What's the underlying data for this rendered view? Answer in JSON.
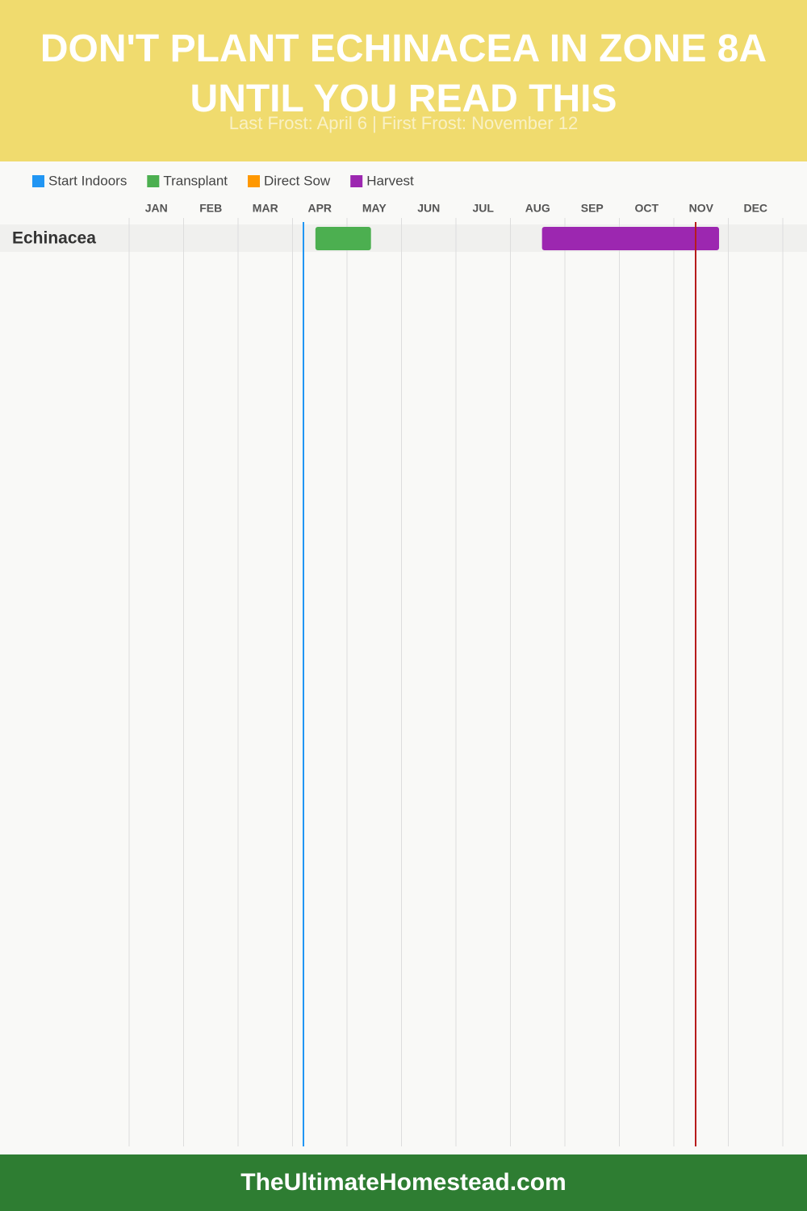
{
  "chart_data": {
    "type": "gantt",
    "title": "DON'T PLANT ECHINACEA IN ZONE 8A UNTIL YOU READ THIS",
    "subtitle": "Last Frost: April 6 | First Frost: November 12",
    "footer": "TheUltimateHomestead.com",
    "categories": [
      "Echinacea"
    ],
    "xlim": [
      0,
      12
    ],
    "xticks": [
      {
        "value": 0.5,
        "label": "JAN"
      },
      {
        "value": 1.5,
        "label": "FEB"
      },
      {
        "value": 2.5,
        "label": "MAR"
      },
      {
        "value": 3.5,
        "label": "APR"
      },
      {
        "value": 4.5,
        "label": "MAY"
      },
      {
        "value": 5.5,
        "label": "JUN"
      },
      {
        "value": 6.5,
        "label": "JUL"
      },
      {
        "value": 7.5,
        "label": "AUG"
      },
      {
        "value": 8.5,
        "label": "SEP"
      },
      {
        "value": 9.5,
        "label": "OCT"
      },
      {
        "value": 10.5,
        "label": "NOV"
      },
      {
        "value": 11.5,
        "label": "DEC"
      }
    ],
    "grid": true,
    "series": [
      {
        "name": "Start Indoors",
        "color": "#2196f3",
        "values": [
          null
        ]
      },
      {
        "name": "Transplant",
        "color": "#4caf50",
        "values": [
          [
            3.42,
            4.44
          ]
        ]
      },
      {
        "name": "Direct Sow",
        "color": "#ff9800",
        "values": [
          null
        ]
      },
      {
        "name": "Harvest",
        "color": "#9c27b0",
        "values": [
          [
            7.58,
            10.83
          ]
        ]
      }
    ],
    "markers": [
      {
        "value": 3.2,
        "color": "#2196f3"
      },
      {
        "value": 10.4,
        "color": "#b71c1c"
      }
    ]
  }
}
